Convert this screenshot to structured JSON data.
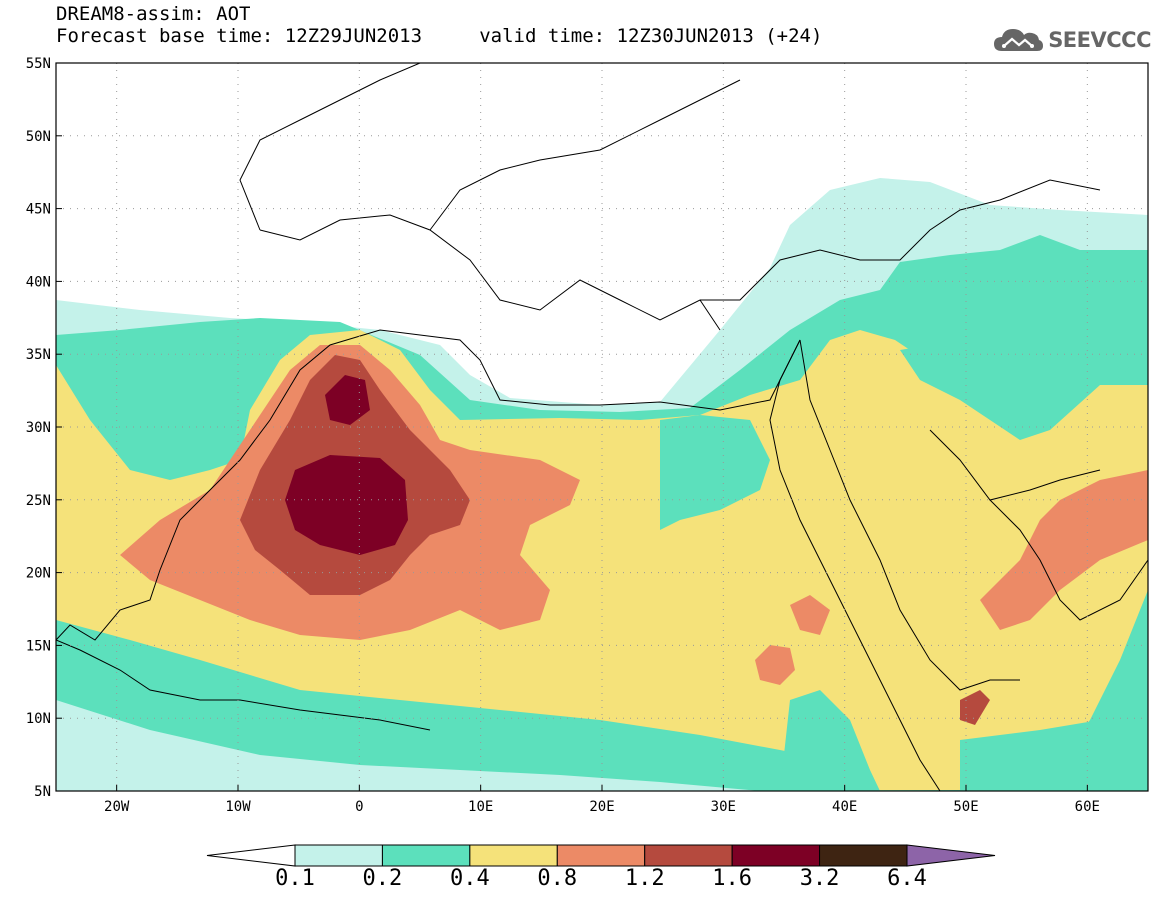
{
  "header": {
    "line1": "DREAM8-assim: AOT",
    "line2": "Forecast base time: 12Z29JUN2013     valid time: 12Z30JUN2013 (+24)"
  },
  "logo": {
    "text": "SEEVCCC",
    "icon": "cloud-icon",
    "color": "#666666"
  },
  "map": {
    "lon_range": [
      -25,
      65
    ],
    "lat_range": [
      5,
      55
    ],
    "lon_ticks": [
      {
        "value": -20,
        "label": "20W"
      },
      {
        "value": -10,
        "label": "10W"
      },
      {
        "value": 0,
        "label": "0"
      },
      {
        "value": 10,
        "label": "10E"
      },
      {
        "value": 20,
        "label": "20E"
      },
      {
        "value": 30,
        "label": "30E"
      },
      {
        "value": 40,
        "label": "40E"
      },
      {
        "value": 50,
        "label": "50E"
      },
      {
        "value": 60,
        "label": "60E"
      }
    ],
    "lat_ticks": [
      {
        "value": 55,
        "label": "55N"
      },
      {
        "value": 50,
        "label": "50N"
      },
      {
        "value": 45,
        "label": "45N"
      },
      {
        "value": 40,
        "label": "40N"
      },
      {
        "value": 35,
        "label": "35N"
      },
      {
        "value": 30,
        "label": "30N"
      },
      {
        "value": 25,
        "label": "25N"
      },
      {
        "value": 20,
        "label": "20N"
      },
      {
        "value": 15,
        "label": "15N"
      },
      {
        "value": 10,
        "label": "10N"
      },
      {
        "value": 5,
        "label": "5N"
      }
    ]
  },
  "colorbar": {
    "levels": [
      {
        "label": "0.1",
        "color": "#c4f2ea"
      },
      {
        "label": "0.2",
        "color": "#5ce0bc"
      },
      {
        "label": "0.4",
        "color": "#f5e27a"
      },
      {
        "label": "0.8",
        "color": "#ec8a66"
      },
      {
        "label": "1.2",
        "color": "#b54a3e"
      },
      {
        "label": "1.6",
        "color": "#7d0025"
      },
      {
        "label": "3.2",
        "color": "#3e2412"
      },
      {
        "label": "6.4",
        "color": "#8d64a8"
      }
    ],
    "below_color": "#ffffff"
  }
}
